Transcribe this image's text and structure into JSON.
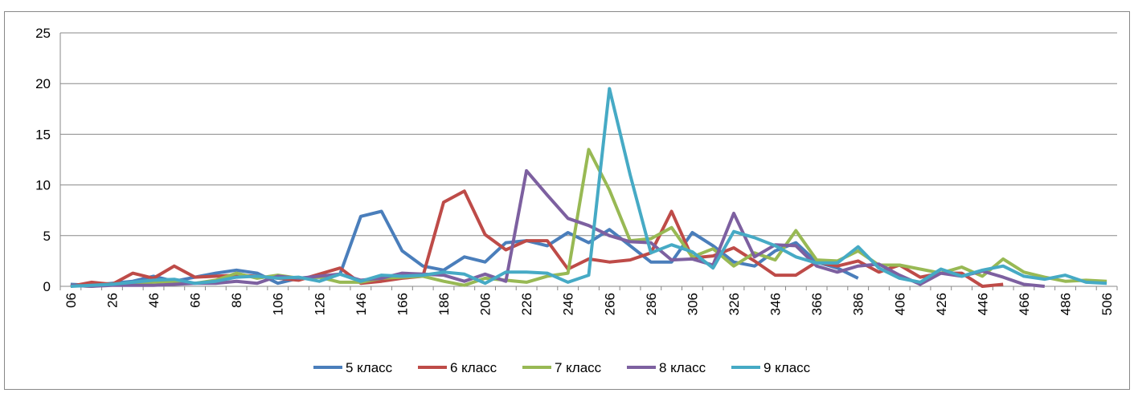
{
  "chart_data": {
    "type": "line",
    "categories": [
      "06",
      null,
      "26",
      null,
      "46",
      null,
      "66",
      null,
      "86",
      null,
      "106",
      null,
      "126",
      null,
      "146",
      null,
      "166",
      null,
      "186",
      null,
      "206",
      null,
      "226",
      null,
      "246",
      null,
      "266",
      null,
      "286",
      null,
      "306",
      null,
      "326",
      null,
      "346",
      null,
      "366",
      null,
      "386",
      null,
      "406",
      null,
      "426",
      null,
      "446",
      null,
      "466",
      null,
      "486",
      null,
      "506"
    ],
    "series": [
      {
        "name": "5 класс",
        "color": "#4a7ebb",
        "values": [
          0.2,
          0.1,
          0.3,
          0.5,
          1.0,
          0.5,
          0.9,
          1.3,
          1.6,
          1.3,
          0.3,
          0.8,
          0.9,
          1.2,
          6.9,
          7.4,
          3.5,
          2.0,
          1.6,
          2.9,
          2.4,
          4.3,
          4.5,
          4.0,
          5.3,
          4.3,
          5.6,
          4.0,
          2.4,
          2.4,
          5.3,
          4.0,
          2.4,
          2.0,
          3.5,
          4.3,
          2.4,
          1.8,
          0.8,
          null,
          null,
          null,
          null,
          null,
          null,
          null,
          null,
          null,
          null,
          null,
          null
        ]
      },
      {
        "name": "6 класс",
        "color": "#be4b48",
        "values": [
          0.0,
          0.4,
          0.2,
          1.3,
          0.8,
          2.0,
          0.9,
          1.0,
          1.1,
          1.0,
          0.8,
          0.6,
          1.2,
          1.8,
          0.3,
          0.5,
          0.8,
          1.0,
          8.3,
          9.4,
          5.1,
          3.6,
          4.5,
          4.5,
          1.7,
          2.7,
          2.4,
          2.6,
          3.3,
          7.4,
          2.8,
          3.0,
          3.8,
          2.5,
          1.1,
          1.1,
          2.4,
          2.0,
          2.5,
          1.4,
          2.1,
          0.9,
          1.3,
          1.3,
          0.0,
          0.2,
          null,
          null,
          null,
          null,
          null
        ]
      },
      {
        "name": "7 класс",
        "color": "#98b954",
        "values": [
          0.1,
          0.0,
          0.2,
          0.3,
          0.4,
          0.5,
          0.3,
          0.6,
          1.3,
          0.8,
          1.1,
          0.8,
          0.9,
          0.4,
          0.4,
          0.8,
          0.9,
          1.0,
          0.5,
          0.1,
          0.8,
          0.6,
          0.4,
          1.0,
          1.3,
          13.5,
          9.5,
          4.5,
          4.7,
          5.8,
          2.9,
          3.7,
          2.0,
          3.3,
          2.6,
          5.5,
          2.6,
          2.5,
          3.5,
          2.1,
          2.1,
          1.7,
          1.3,
          1.9,
          1.0,
          2.7,
          1.4,
          0.9,
          0.5,
          0.6,
          0.5
        ]
      },
      {
        "name": "8 класс",
        "color": "#7d60a0",
        "values": [
          0.1,
          0.0,
          0.1,
          0.1,
          0.1,
          0.2,
          0.3,
          0.3,
          0.5,
          0.3,
          1.0,
          0.8,
          1.0,
          1.2,
          0.6,
          0.8,
          1.3,
          1.2,
          1.1,
          0.5,
          1.2,
          0.5,
          11.4,
          9.0,
          6.7,
          6.0,
          5.0,
          4.4,
          4.3,
          2.6,
          2.7,
          2.1,
          7.2,
          2.9,
          4.1,
          4.0,
          2.0,
          1.4,
          2.0,
          2.2,
          1.1,
          0.2,
          1.3,
          1.0,
          1.5,
          0.9,
          0.2,
          0.0,
          null,
          null,
          null
        ]
      },
      {
        "name": "9 класс",
        "color": "#46aac5",
        "values": [
          0.0,
          0.1,
          0.2,
          0.4,
          0.6,
          0.7,
          0.3,
          0.5,
          0.9,
          1.0,
          0.8,
          0.9,
          0.5,
          1.2,
          0.5,
          1.1,
          1.0,
          1.1,
          1.4,
          1.2,
          0.3,
          1.4,
          1.4,
          1.3,
          0.4,
          1.1,
          19.5,
          11.0,
          3.3,
          4.1,
          3.4,
          1.8,
          5.4,
          4.8,
          4.0,
          2.9,
          2.3,
          2.3,
          3.9,
          1.8,
          0.8,
          0.4,
          1.7,
          1.0,
          1.6,
          2.0,
          1.0,
          0.7,
          1.1,
          0.4,
          0.3
        ]
      }
    ],
    "ylim": [
      0,
      25
    ],
    "yticks": [
      0,
      5,
      10,
      15,
      20,
      25
    ],
    "grid": true,
    "legend": "bottom"
  }
}
